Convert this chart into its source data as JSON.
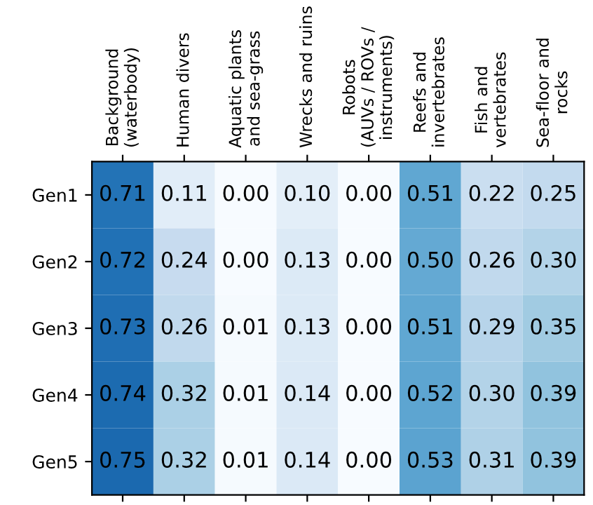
{
  "chart_data": {
    "type": "heatmap",
    "categories": [
      "Background\n(waterbody)",
      "Human divers",
      "Aquatic plants\nand sea-grass",
      "Wrecks and ruins",
      "Robots\n(AUVs / ROVs /\ninstruments)",
      "Reefs and\ninvertebrates",
      "Fish and\nvertebrates",
      "Sea-floor and\nrocks"
    ],
    "y_categories": [
      "Gen1",
      "Gen2",
      "Gen3",
      "Gen4",
      "Gen5"
    ],
    "cells": [
      [
        0.71,
        0.11,
        0.0,
        0.1,
        0.0,
        0.51,
        0.22,
        0.25
      ],
      [
        0.72,
        0.24,
        0.0,
        0.13,
        0.0,
        0.5,
        0.26,
        0.3
      ],
      [
        0.73,
        0.26,
        0.01,
        0.13,
        0.0,
        0.51,
        0.29,
        0.35
      ],
      [
        0.74,
        0.32,
        0.01,
        0.14,
        0.0,
        0.52,
        0.3,
        0.39
      ],
      [
        0.75,
        0.32,
        0.01,
        0.14,
        0.0,
        0.53,
        0.31,
        0.39
      ]
    ],
    "cell_labels": [
      [
        "0.71",
        "0.11",
        "0.00",
        "0.10",
        "0.00",
        "0.51",
        "0.22",
        "0.25"
      ],
      [
        "0.72",
        "0.24",
        "0.00",
        "0.13",
        "0.00",
        "0.50",
        "0.26",
        "0.30"
      ],
      [
        "0.73",
        "0.26",
        "0.01",
        "0.13",
        "0.00",
        "0.51",
        "0.29",
        "0.35"
      ],
      [
        "0.74",
        "0.32",
        "0.01",
        "0.14",
        "0.00",
        "0.52",
        "0.30",
        "0.39"
      ],
      [
        "0.75",
        "0.32",
        "0.01",
        "0.14",
        "0.00",
        "0.53",
        "0.31",
        "0.39"
      ]
    ]
  }
}
